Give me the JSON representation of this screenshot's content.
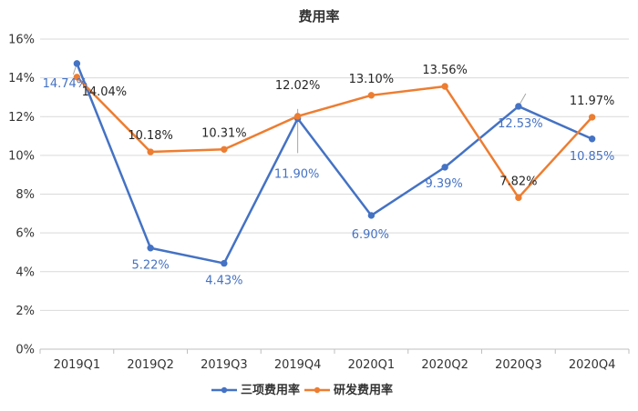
{
  "chart_data": {
    "type": "line",
    "title": "费用率",
    "categories": [
      "2019Q1",
      "2019Q2",
      "2019Q3",
      "2019Q4",
      "2020Q1",
      "2020Q2",
      "2020Q3",
      "2020Q4"
    ],
    "y_ticks": [
      "0%",
      "2%",
      "4%",
      "6%",
      "8%",
      "10%",
      "12%",
      "14%",
      "16%"
    ],
    "ylim": [
      0,
      16
    ],
    "grid": true,
    "legend_position": "bottom",
    "series": [
      {
        "name": "三项费用率",
        "color": "#4472C4",
        "values": [
          14.74,
          5.22,
          4.43,
          11.9,
          6.9,
          9.39,
          12.53,
          10.85
        ],
        "labels": [
          "14.74%",
          "5.22%",
          "4.43%",
          "11.90%",
          "6.90%",
          "9.39%",
          "12.53%",
          "10.85%"
        ]
      },
      {
        "name": "研发费用率",
        "color": "#ED7D31",
        "values": [
          14.04,
          10.18,
          10.31,
          12.02,
          13.1,
          13.56,
          7.82,
          11.97
        ],
        "labels": [
          "14.04%",
          "10.18%",
          "10.31%",
          "12.02%",
          "13.10%",
          "13.56%",
          "7.82%",
          "11.97%"
        ]
      }
    ]
  }
}
